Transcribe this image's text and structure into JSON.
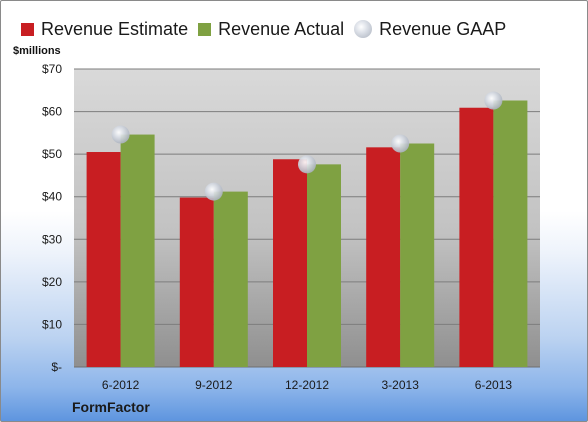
{
  "chart_data": {
    "type": "bar",
    "categories": [
      "6-2012",
      "9-2012",
      "12-2012",
      "3-2013",
      "6-2013"
    ],
    "series": [
      {
        "name": "Revenue Estimate",
        "values": [
          50.5,
          39.8,
          48.8,
          51.6,
          60.9
        ],
        "color": "#c81e22"
      },
      {
        "name": "Revenue Actual",
        "values": [
          54.6,
          41.2,
          47.6,
          52.5,
          62.6
        ],
        "color": "#7fa142"
      },
      {
        "name": "Revenue GAAP",
        "values": [
          54.6,
          41.2,
          47.6,
          52.5,
          62.6
        ],
        "color": "#b8bec8"
      }
    ],
    "ylabel": "$millions",
    "ylim": [
      0,
      70
    ],
    "yticks": [
      0,
      10,
      20,
      30,
      40,
      50,
      60,
      70
    ],
    "ytick_labels": [
      "$-",
      "$10",
      "$20",
      "$30",
      "$40",
      "$50",
      "$60",
      "$70"
    ],
    "grid": true,
    "legend_position": "top"
  },
  "company": "FormFactor"
}
